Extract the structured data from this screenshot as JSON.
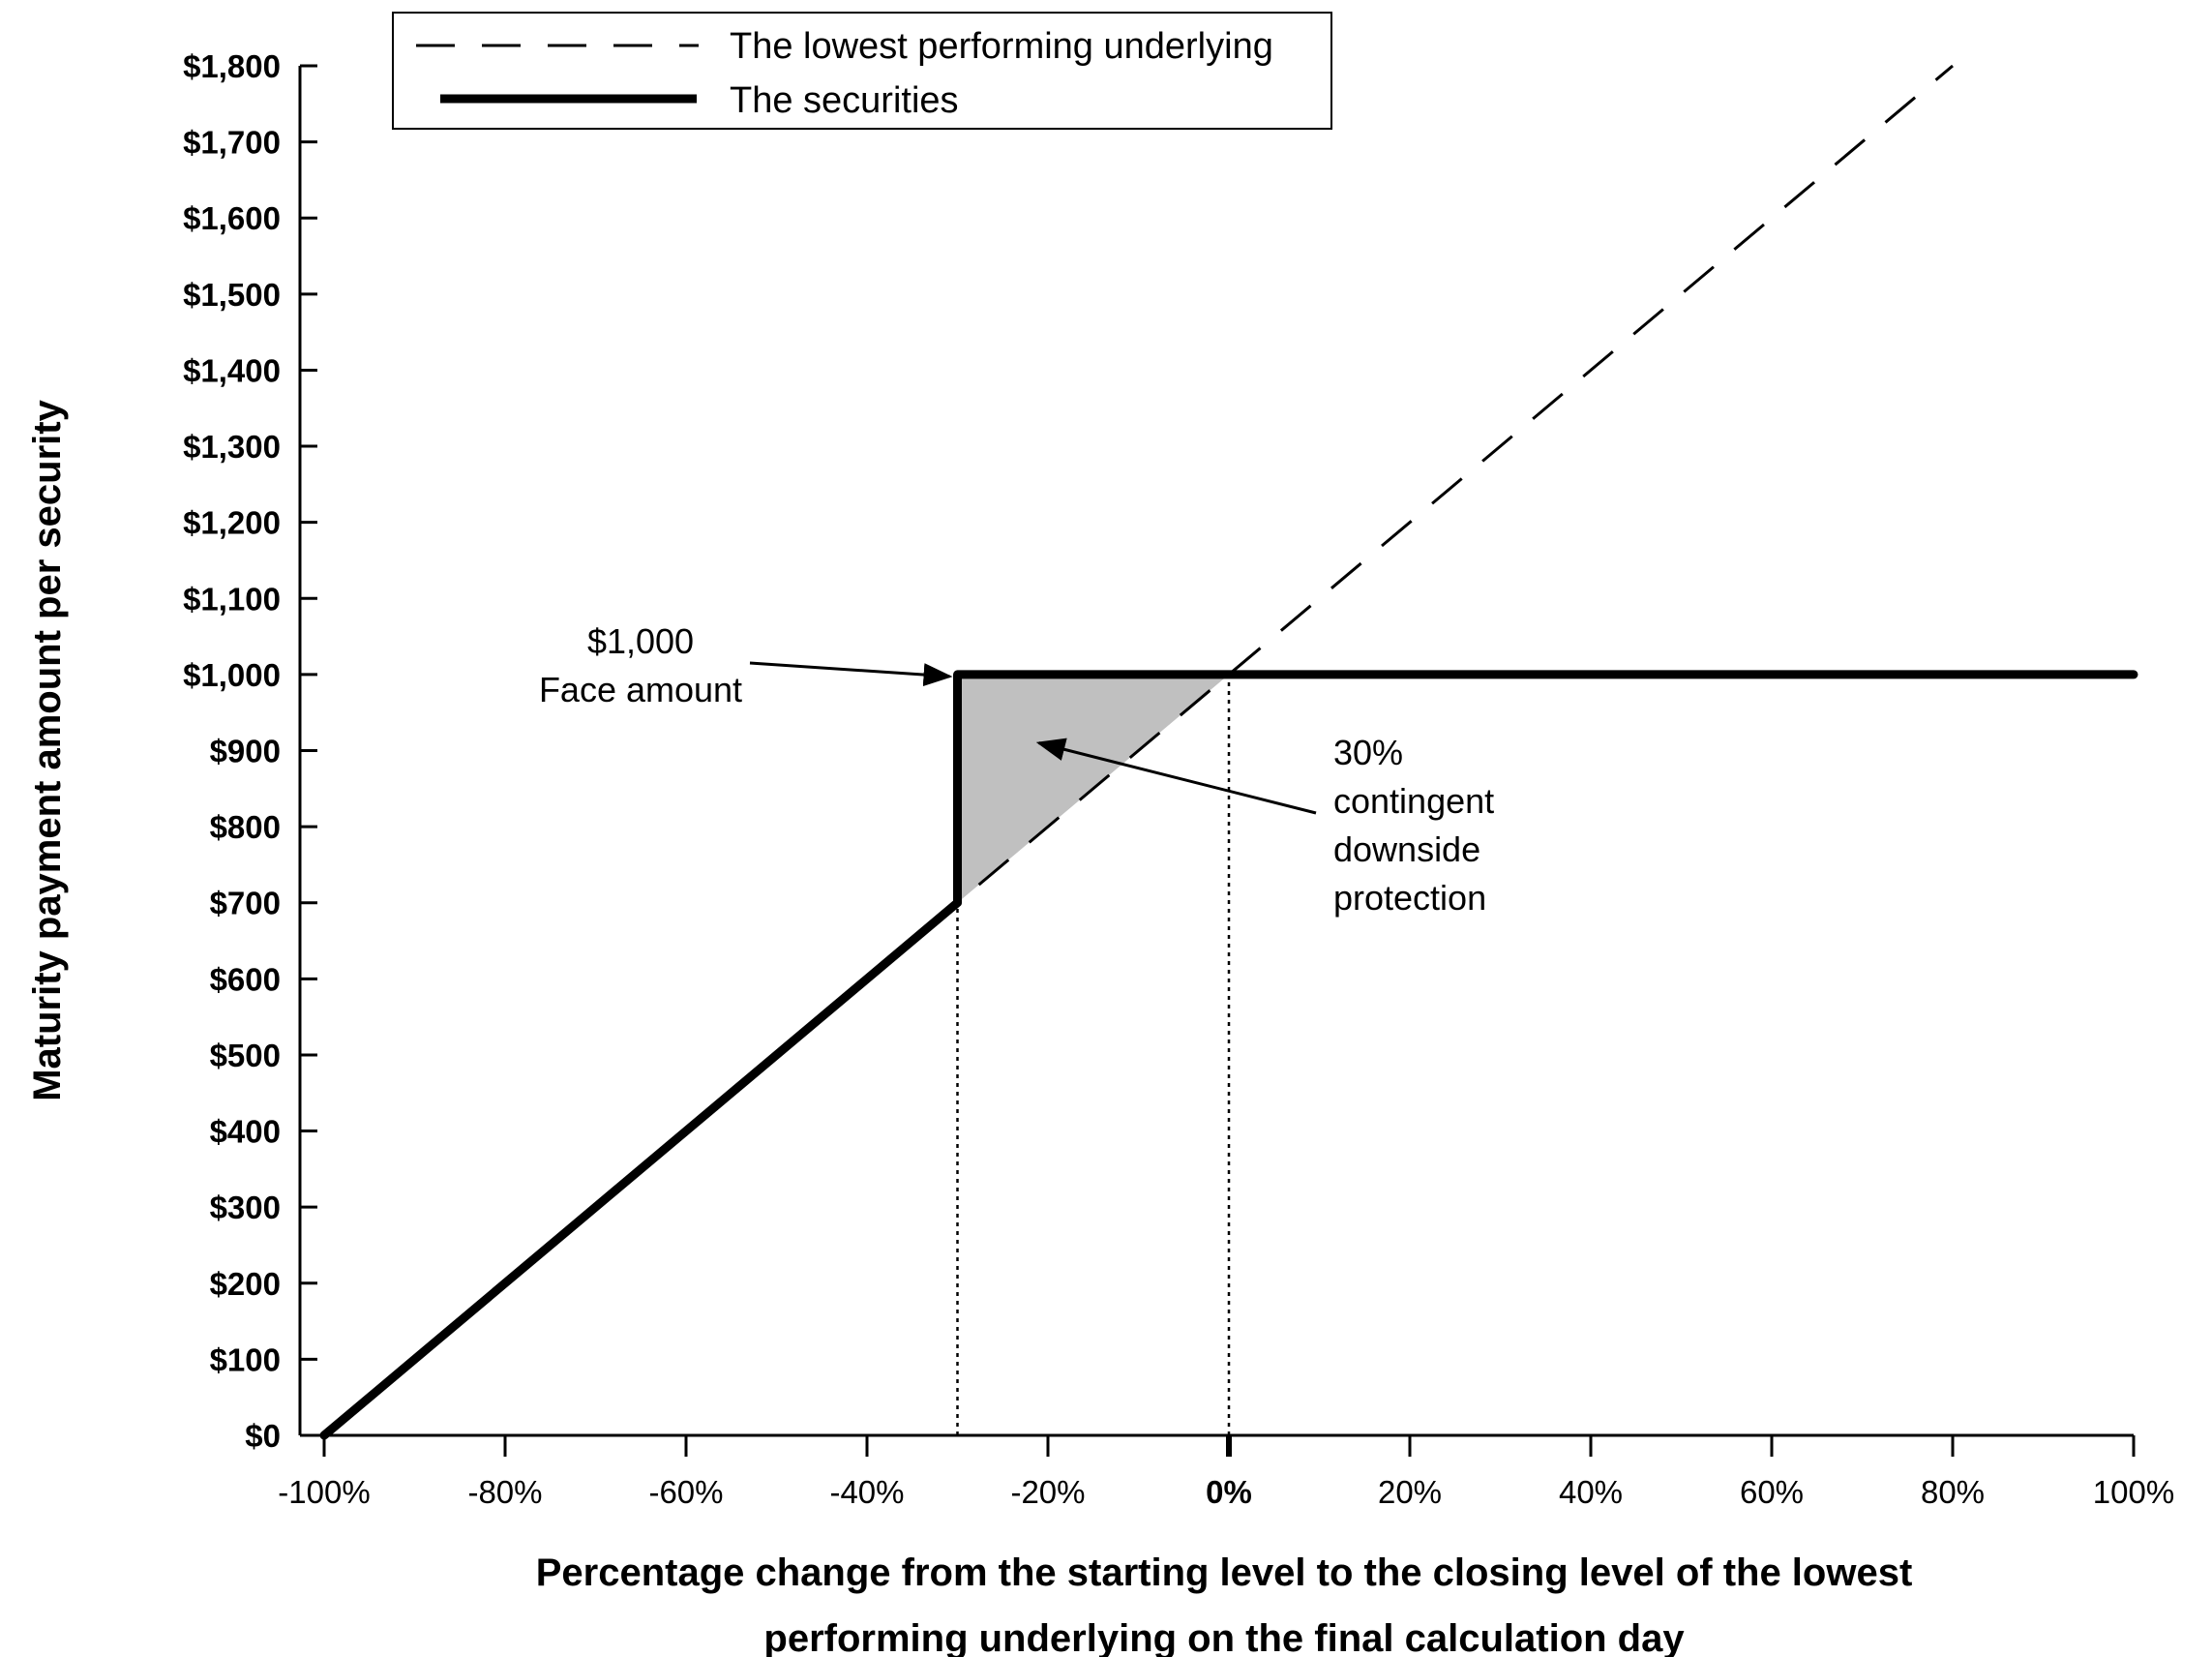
{
  "chart_data": {
    "type": "line",
    "xlabel_lines": [
      "Percentage change from the starting level to the closing level of the lowest",
      "performing underlying on the final calculation day"
    ],
    "ylabel": "Maturity payment amount per security",
    "xlim": [
      -100,
      100
    ],
    "ylim": [
      0,
      1800
    ],
    "x_ticks": [
      {
        "value": -100,
        "label": "-100%"
      },
      {
        "value": -80,
        "label": "-80%"
      },
      {
        "value": -60,
        "label": "-60%"
      },
      {
        "value": -40,
        "label": "-40%"
      },
      {
        "value": -20,
        "label": "-20%"
      },
      {
        "value": 0,
        "label": "0%",
        "bold": true
      },
      {
        "value": 20,
        "label": "20%"
      },
      {
        "value": 40,
        "label": "40%"
      },
      {
        "value": 60,
        "label": "60%"
      },
      {
        "value": 80,
        "label": "80%"
      },
      {
        "value": 100,
        "label": "100%"
      }
    ],
    "y_ticks": [
      {
        "value": 0,
        "label": "$0"
      },
      {
        "value": 100,
        "label": "$100"
      },
      {
        "value": 200,
        "label": "$200"
      },
      {
        "value": 300,
        "label": "$300"
      },
      {
        "value": 400,
        "label": "$400"
      },
      {
        "value": 500,
        "label": "$500"
      },
      {
        "value": 600,
        "label": "$600"
      },
      {
        "value": 700,
        "label": "$700"
      },
      {
        "value": 800,
        "label": "$800"
      },
      {
        "value": 900,
        "label": "$900"
      },
      {
        "value": 1000,
        "label": "$1,000"
      },
      {
        "value": 1100,
        "label": "$1,100"
      },
      {
        "value": 1200,
        "label": "$1,200"
      },
      {
        "value": 1300,
        "label": "$1,300"
      },
      {
        "value": 1400,
        "label": "$1,400"
      },
      {
        "value": 1500,
        "label": "$1,500"
      },
      {
        "value": 1600,
        "label": "$1,600"
      },
      {
        "value": 1700,
        "label": "$1,700"
      },
      {
        "value": 1800,
        "label": "$1,800"
      }
    ],
    "series": [
      {
        "name": "The lowest performing underlying",
        "style": "dashed",
        "points": [
          [
            -100,
            0
          ],
          [
            80,
            1800
          ]
        ]
      },
      {
        "name": "The securities",
        "style": "solid-thick",
        "points": [
          [
            -100,
            0
          ],
          [
            -30,
            700
          ],
          [
            -30,
            1000
          ],
          [
            100,
            1000
          ]
        ]
      }
    ],
    "shaded_region": [
      [
        -30,
        700
      ],
      [
        -30,
        1000
      ],
      [
        0,
        1000
      ]
    ],
    "reference_lines": [
      {
        "x": -30,
        "y_from": 0,
        "y_to": 700
      },
      {
        "x": 0,
        "y_from": 0,
        "y_to": 1000
      }
    ],
    "annotations": [
      {
        "lines": [
          "$1,000",
          "Face amount"
        ],
        "arrow_to": [
          -30,
          1000
        ]
      },
      {
        "lines": [
          "30%",
          "contingent",
          "downside",
          "protection"
        ],
        "arrow_to": [
          -21,
          910
        ]
      }
    ],
    "legend_position": "top-center",
    "grid": false,
    "colors": {
      "line": "#000000",
      "shade": "#c0c0c0"
    }
  }
}
